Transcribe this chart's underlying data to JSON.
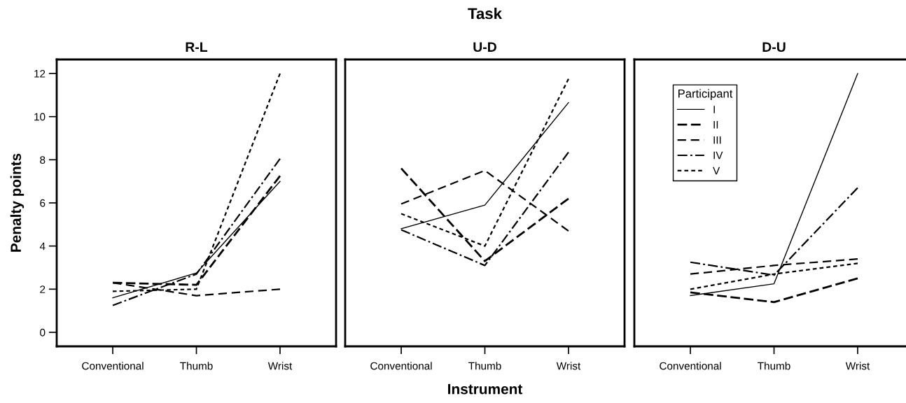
{
  "chart_data": [
    {
      "type": "line",
      "title": "R-L",
      "ylabel": "Penalty points",
      "categories": [
        "Conventional",
        "Thumb",
        "Wrist"
      ],
      "ylim": [
        -0.65,
        12.65
      ],
      "yticks": [
        0,
        2,
        4,
        6,
        8,
        10,
        12
      ],
      "grid": false,
      "legend": false,
      "series": [
        {
          "color": "#000000",
          "line_style": "solid",
          "values": [
            1.6,
            2.75,
            7.0
          ]
        },
        {
          "color": "#000000",
          "line_style": "dashed",
          "values": [
            2.3,
            2.2,
            7.25
          ]
        },
        {
          "color": "#000000",
          "line_style": "dashed",
          "values": [
            2.3,
            1.7,
            2.0
          ]
        },
        {
          "color": "#000000",
          "line_style": "dashed",
          "values": [
            1.25,
            2.7,
            8.05
          ]
        },
        {
          "color": "#000000",
          "line_style": "dotted",
          "values": [
            1.9,
            2.0,
            12.0
          ]
        }
      ]
    },
    {
      "type": "line",
      "title": "U-D",
      "xlabel": "Instrument",
      "annotations": [
        "Task"
      ],
      "categories": [
        "Conventional",
        "Thumb",
        "Wrist"
      ],
      "ylim": [
        -0.65,
        12.65
      ],
      "tick_labels": "x",
      "grid": false,
      "legend": false,
      "series": [
        {
          "color": "#000000",
          "line_style": "solid",
          "values": [
            4.8,
            5.9,
            10.65
          ]
        },
        {
          "color": "#000000",
          "line_style": "dashed",
          "values": [
            7.6,
            3.3,
            6.2
          ]
        },
        {
          "color": "#000000",
          "line_style": "dashed",
          "values": [
            5.95,
            7.5,
            4.7
          ]
        },
        {
          "color": "#000000",
          "line_style": "dashed",
          "values": [
            4.75,
            3.1,
            8.35
          ]
        },
        {
          "color": "#000000",
          "line_style": "dotted",
          "values": [
            5.5,
            4.0,
            11.75
          ]
        }
      ]
    },
    {
      "type": "line",
      "title": "D-U",
      "legend_title": "Participant",
      "categories": [
        "Conventional",
        "Thumb",
        "Wrist"
      ],
      "ylim": [
        -0.65,
        12.65
      ],
      "tick_labels": "x",
      "grid": false,
      "legend": "top left",
      "series": [
        {
          "name": "I",
          "color": "#000000",
          "line_style": "solid",
          "values": [
            1.7,
            2.25,
            12.0
          ]
        },
        {
          "name": "II",
          "color": "#000000",
          "line_style": "dashed",
          "values": [
            1.85,
            1.4,
            2.5
          ]
        },
        {
          "name": "III",
          "color": "#000000",
          "line_style": "dashed",
          "values": [
            2.7,
            3.1,
            3.4
          ]
        },
        {
          "name": "IV",
          "color": "#000000",
          "line_style": "dashed",
          "values": [
            3.25,
            2.65,
            6.7
          ]
        },
        {
          "name": "V",
          "color": "#000000",
          "line_style": "dotted",
          "values": [
            2.0,
            2.7,
            3.2
          ]
        }
      ]
    }
  ]
}
